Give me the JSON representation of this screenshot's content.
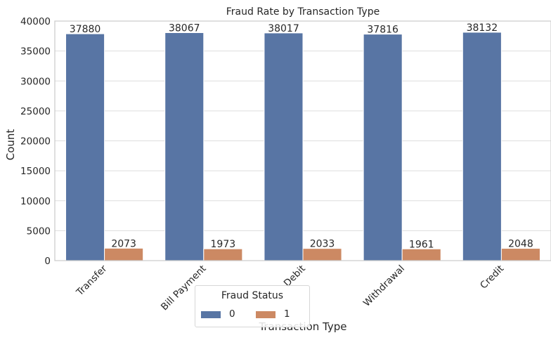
{
  "chart_data": {
    "type": "bar",
    "title": "Fraud Rate by Transaction Type",
    "xlabel": "Transaction Type",
    "ylabel": "Count",
    "categories": [
      "Transfer",
      "Bill Payment",
      "Debit",
      "Withdrawal",
      "Credit"
    ],
    "series": [
      {
        "name": "0",
        "values": [
          37880,
          38067,
          38017,
          37816,
          38132
        ],
        "color": "#5875a4"
      },
      {
        "name": "1",
        "values": [
          2073,
          1973,
          2033,
          1961,
          2048
        ],
        "color": "#cc8963"
      }
    ],
    "ylim": [
      0,
      40000
    ],
    "yticks": [
      0,
      5000,
      10000,
      15000,
      20000,
      25000,
      30000,
      35000,
      40000
    ],
    "grid": true,
    "legend": {
      "title": "Fraud Status",
      "placement": "lower center"
    }
  }
}
